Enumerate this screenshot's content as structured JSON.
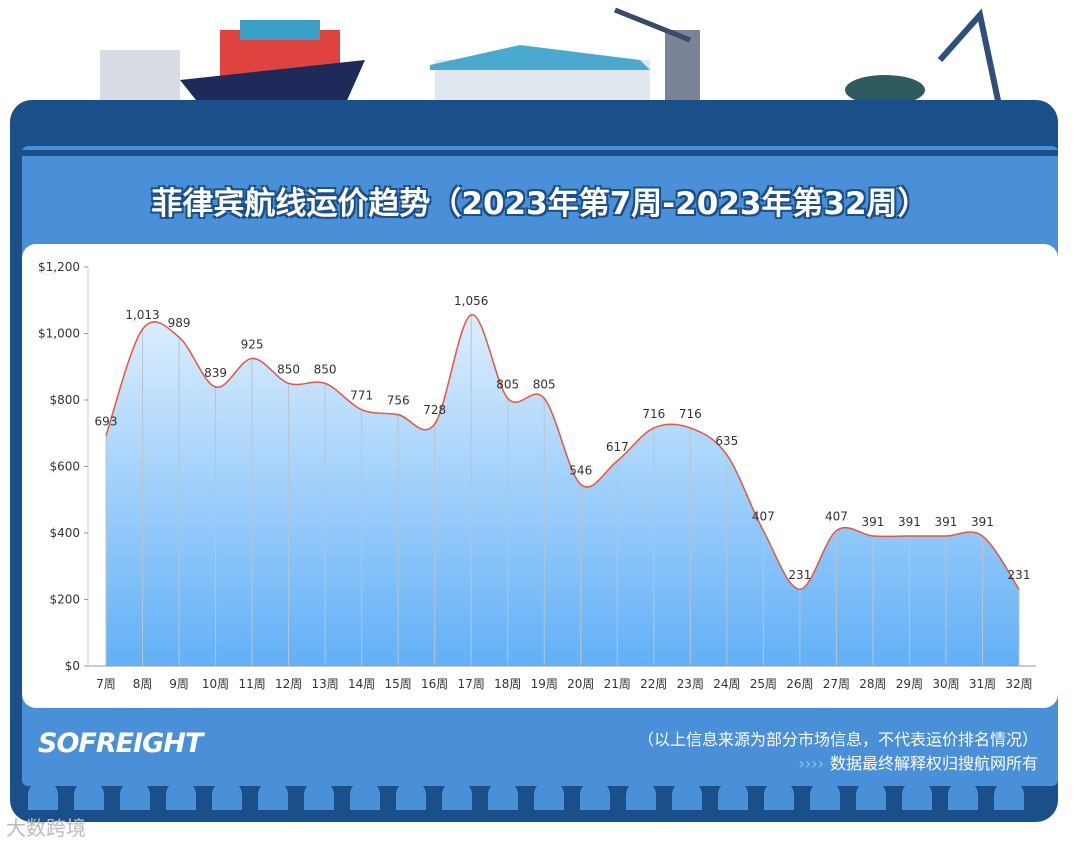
{
  "title": "菲律宾航线运价趋势（2023年第7周-2023年第32周）",
  "footer": {
    "logo": "SOFREIGHT",
    "note": "（以上信息来源为部分市场信息，不代表运价排名情况）",
    "arrows": "››››",
    "copyright": "数据最终解释权归搜航网所有",
    "watermark": "大数跨境"
  },
  "colors": {
    "frame": "#1a4f8a",
    "panel": "#4a90d9",
    "line": "#e8553e",
    "area_top": "#dceefe",
    "area_bottom": "#62b0f7"
  },
  "chart_data": {
    "type": "area",
    "title": "菲律宾航线运价趋势（2023年第7周-2023年第32周）",
    "categories": [
      "7周",
      "8周",
      "9周",
      "10周",
      "11周",
      "12周",
      "13周",
      "14周",
      "15周",
      "16周",
      "17周",
      "18周",
      "19周",
      "20周",
      "21周",
      "22周",
      "23周",
      "24周",
      "25周",
      "26周",
      "27周",
      "28周",
      "29周",
      "30周",
      "31周",
      "32周"
    ],
    "values": [
      693,
      1013,
      989,
      839,
      925,
      850,
      850,
      771,
      756,
      728,
      1056,
      805,
      805,
      546,
      617,
      716,
      716,
      635,
      407,
      231,
      407,
      391,
      391,
      391,
      391,
      231
    ],
    "data_labels": [
      "693",
      "1,013",
      "989",
      "839",
      "925",
      "850",
      "850",
      "771",
      "756",
      "728",
      "1,056",
      "805",
      "805",
      "546",
      "617",
      "716",
      "716",
      "635",
      "407",
      "231",
      "407",
      "391",
      "391",
      "391",
      "391",
      "231"
    ],
    "yticks": [
      "$0",
      "$200",
      "$400",
      "$600",
      "$800",
      "$1,000",
      "$1,200"
    ],
    "ylim": [
      0,
      1200
    ],
    "grid": "vertical lines at each category",
    "legend": "none"
  }
}
